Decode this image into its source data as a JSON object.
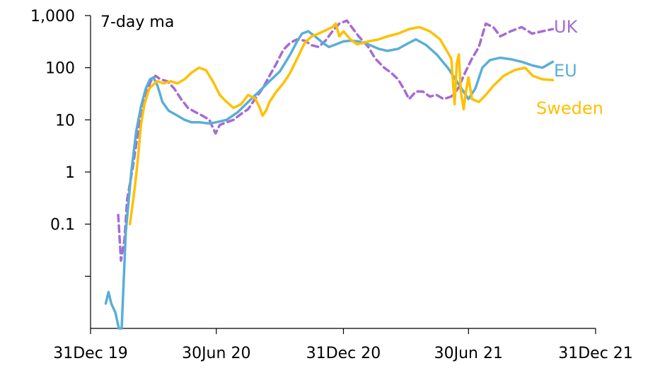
{
  "chart_data": {
    "type": "line",
    "title": "",
    "annotation": "7-day ma",
    "xlabel": "",
    "ylabel": "",
    "x_scale": "time",
    "y_scale": "log",
    "xlim": [
      "2019-12-31",
      "2021-12-31"
    ],
    "ylim": [
      0.001,
      1000
    ],
    "x_ticks": [
      {
        "date": "2019-12-31",
        "label": "31Dec 19"
      },
      {
        "date": "2020-06-30",
        "label": "30Jun 20"
      },
      {
        "date": "2020-12-31",
        "label": "31Dec 20"
      },
      {
        "date": "2021-06-30",
        "label": "30Jun 21"
      },
      {
        "date": "2021-12-31",
        "label": "31Dec 21"
      }
    ],
    "y_ticks": [
      {
        "value": 1000,
        "label": "1,000"
      },
      {
        "value": 100,
        "label": "100"
      },
      {
        "value": 10,
        "label": "10"
      },
      {
        "value": 1,
        "label": "1"
      },
      {
        "value": 0.1,
        "label": "0.1"
      },
      {
        "value": 0.01,
        "label": ""
      }
    ],
    "grid": false,
    "legend_position": "right (labels beside line ends)",
    "series": [
      {
        "name": "UK",
        "color": "#a66bd3",
        "dash": "dashed",
        "points": [
          [
            "2020-02-09",
            0.15
          ],
          [
            "2020-02-13",
            0.02
          ],
          [
            "2020-02-18",
            0.05
          ],
          [
            "2020-02-22",
            0.3
          ],
          [
            "2020-03-01",
            1.2
          ],
          [
            "2020-03-08",
            5
          ],
          [
            "2020-03-13",
            14
          ],
          [
            "2020-03-17",
            25
          ],
          [
            "2020-03-22",
            35
          ],
          [
            "2020-03-27",
            55
          ],
          [
            "2020-04-03",
            70
          ],
          [
            "2020-04-10",
            60
          ],
          [
            "2020-04-20",
            55
          ],
          [
            "2020-04-30",
            40
          ],
          [
            "2020-05-10",
            25
          ],
          [
            "2020-05-20",
            17
          ],
          [
            "2020-05-31",
            14
          ],
          [
            "2020-06-10",
            12
          ],
          [
            "2020-06-20",
            10
          ],
          [
            "2020-06-25",
            7
          ],
          [
            "2020-06-29",
            5.5
          ],
          [
            "2020-07-05",
            8
          ],
          [
            "2020-07-15",
            9
          ],
          [
            "2020-07-25",
            10
          ],
          [
            "2020-08-05",
            13
          ],
          [
            "2020-08-15",
            16
          ],
          [
            "2020-08-25",
            25
          ],
          [
            "2020-09-05",
            40
          ],
          [
            "2020-09-15",
            70
          ],
          [
            "2020-09-25",
            120
          ],
          [
            "2020-10-05",
            220
          ],
          [
            "2020-10-15",
            300
          ],
          [
            "2020-10-25",
            350
          ],
          [
            "2020-11-05",
            330
          ],
          [
            "2020-11-15",
            270
          ],
          [
            "2020-11-25",
            250
          ],
          [
            "2020-12-05",
            330
          ],
          [
            "2020-12-15",
            500
          ],
          [
            "2020-12-25",
            700
          ],
          [
            "2021-01-05",
            800
          ],
          [
            "2021-01-12",
            600
          ],
          [
            "2021-01-22",
            400
          ],
          [
            "2021-02-05",
            250
          ],
          [
            "2021-02-15",
            150
          ],
          [
            "2021-02-28",
            100
          ],
          [
            "2021-03-10",
            80
          ],
          [
            "2021-03-20",
            60
          ],
          [
            "2021-03-28",
            40
          ],
          [
            "2021-04-05",
            25
          ],
          [
            "2021-04-15",
            35
          ],
          [
            "2021-04-25",
            35
          ],
          [
            "2021-05-05",
            28
          ],
          [
            "2021-05-15",
            30
          ],
          [
            "2021-05-25",
            25
          ],
          [
            "2021-06-05",
            28
          ],
          [
            "2021-06-15",
            40
          ],
          [
            "2021-06-25",
            80
          ],
          [
            "2021-07-05",
            150
          ],
          [
            "2021-07-15",
            250
          ],
          [
            "2021-07-25",
            700
          ],
          [
            "2021-08-05",
            600
          ],
          [
            "2021-08-15",
            400
          ],
          [
            "2021-08-30",
            500
          ],
          [
            "2021-09-15",
            600
          ],
          [
            "2021-09-30",
            450
          ],
          [
            "2021-10-15",
            500
          ],
          [
            "2021-10-30",
            550
          ]
        ]
      },
      {
        "name": "EU",
        "color": "#5aaed6",
        "dash": "solid",
        "points": [
          [
            "2020-01-22",
            0.003
          ],
          [
            "2020-01-26",
            0.005
          ],
          [
            "2020-01-30",
            0.003
          ],
          [
            "2020-02-05",
            0.002
          ],
          [
            "2020-02-10",
            0.001
          ],
          [
            "2020-02-14",
            0.001
          ],
          [
            "2020-02-20",
            0.07
          ],
          [
            "2020-02-28",
            1
          ],
          [
            "2020-03-06",
            6
          ],
          [
            "2020-03-13",
            18
          ],
          [
            "2020-03-20",
            40
          ],
          [
            "2020-03-26",
            60
          ],
          [
            "2020-03-31",
            65
          ],
          [
            "2020-04-06",
            45
          ],
          [
            "2020-04-13",
            22
          ],
          [
            "2020-04-22",
            15
          ],
          [
            "2020-05-05",
            12
          ],
          [
            "2020-05-15",
            10
          ],
          [
            "2020-05-25",
            9
          ],
          [
            "2020-06-05",
            9
          ],
          [
            "2020-06-20",
            8.5
          ],
          [
            "2020-06-30",
            9
          ],
          [
            "2020-07-15",
            10
          ],
          [
            "2020-07-31",
            14
          ],
          [
            "2020-08-15",
            22
          ],
          [
            "2020-08-31",
            35
          ],
          [
            "2020-09-15",
            55
          ],
          [
            "2020-09-30",
            85
          ],
          [
            "2020-10-15",
            180
          ],
          [
            "2020-10-25",
            320
          ],
          [
            "2020-11-01",
            450
          ],
          [
            "2020-11-10",
            500
          ],
          [
            "2020-11-20",
            400
          ],
          [
            "2020-12-01",
            300
          ],
          [
            "2020-12-10",
            250
          ],
          [
            "2020-12-20",
            280
          ],
          [
            "2020-12-31",
            320
          ],
          [
            "2021-01-10",
            330
          ],
          [
            "2021-01-22",
            320
          ],
          [
            "2021-02-05",
            280
          ],
          [
            "2021-02-20",
            230
          ],
          [
            "2021-03-05",
            210
          ],
          [
            "2021-03-20",
            230
          ],
          [
            "2021-04-05",
            300
          ],
          [
            "2021-04-15",
            350
          ],
          [
            "2021-04-30",
            270
          ],
          [
            "2021-05-15",
            180
          ],
          [
            "2021-05-31",
            100
          ],
          [
            "2021-06-15",
            50
          ],
          [
            "2021-06-30",
            25
          ],
          [
            "2021-07-10",
            40
          ],
          [
            "2021-07-20",
            100
          ],
          [
            "2021-07-31",
            140
          ],
          [
            "2021-08-15",
            155
          ],
          [
            "2021-08-31",
            145
          ],
          [
            "2021-09-15",
            130
          ],
          [
            "2021-10-01",
            110
          ],
          [
            "2021-10-15",
            100
          ],
          [
            "2021-10-30",
            130
          ]
        ]
      },
      {
        "name": "Sweden",
        "color": "#ffc000",
        "dash": "solid",
        "points": [
          [
            "2020-02-26",
            0.1
          ],
          [
            "2020-03-01",
            0.25
          ],
          [
            "2020-03-04",
            0.5
          ],
          [
            "2020-03-08",
            1.5
          ],
          [
            "2020-03-13",
            8
          ],
          [
            "2020-03-18",
            20
          ],
          [
            "2020-03-25",
            40
          ],
          [
            "2020-04-05",
            55
          ],
          [
            "2020-04-15",
            50
          ],
          [
            "2020-04-25",
            55
          ],
          [
            "2020-05-05",
            50
          ],
          [
            "2020-05-15",
            60
          ],
          [
            "2020-05-25",
            80
          ],
          [
            "2020-06-05",
            100
          ],
          [
            "2020-06-15",
            90
          ],
          [
            "2020-06-25",
            55
          ],
          [
            "2020-07-05",
            30
          ],
          [
            "2020-07-15",
            22
          ],
          [
            "2020-07-25",
            17
          ],
          [
            "2020-08-05",
            20
          ],
          [
            "2020-08-15",
            30
          ],
          [
            "2020-08-25",
            26
          ],
          [
            "2020-09-01",
            17
          ],
          [
            "2020-09-05",
            12
          ],
          [
            "2020-09-10",
            15
          ],
          [
            "2020-09-15",
            22
          ],
          [
            "2020-09-25",
            35
          ],
          [
            "2020-10-05",
            50
          ],
          [
            "2020-10-15",
            80
          ],
          [
            "2020-10-25",
            150
          ],
          [
            "2020-11-05",
            300
          ],
          [
            "2020-11-15",
            400
          ],
          [
            "2020-11-25",
            450
          ],
          [
            "2020-12-05",
            520
          ],
          [
            "2020-12-15",
            600
          ],
          [
            "2020-12-20",
            700
          ],
          [
            "2020-12-25",
            400
          ],
          [
            "2020-12-31",
            500
          ],
          [
            "2021-01-10",
            350
          ],
          [
            "2021-01-20",
            280
          ],
          [
            "2021-02-05",
            320
          ],
          [
            "2021-02-20",
            350
          ],
          [
            "2021-03-05",
            400
          ],
          [
            "2021-03-20",
            450
          ],
          [
            "2021-04-05",
            550
          ],
          [
            "2021-04-20",
            600
          ],
          [
            "2021-05-05",
            500
          ],
          [
            "2021-05-20",
            350
          ],
          [
            "2021-06-05",
            150
          ],
          [
            "2021-06-10",
            20
          ],
          [
            "2021-06-13",
            120
          ],
          [
            "2021-06-16",
            180
          ],
          [
            "2021-06-19",
            35
          ],
          [
            "2021-06-23",
            16
          ],
          [
            "2021-06-27",
            40
          ],
          [
            "2021-06-30",
            65
          ],
          [
            "2021-07-05",
            25
          ],
          [
            "2021-07-15",
            22
          ],
          [
            "2021-07-25",
            30
          ],
          [
            "2021-08-05",
            45
          ],
          [
            "2021-08-20",
            70
          ],
          [
            "2021-09-05",
            90
          ],
          [
            "2021-09-20",
            100
          ],
          [
            "2021-10-01",
            70
          ],
          [
            "2021-10-15",
            60
          ],
          [
            "2021-10-30",
            58
          ]
        ]
      }
    ]
  }
}
